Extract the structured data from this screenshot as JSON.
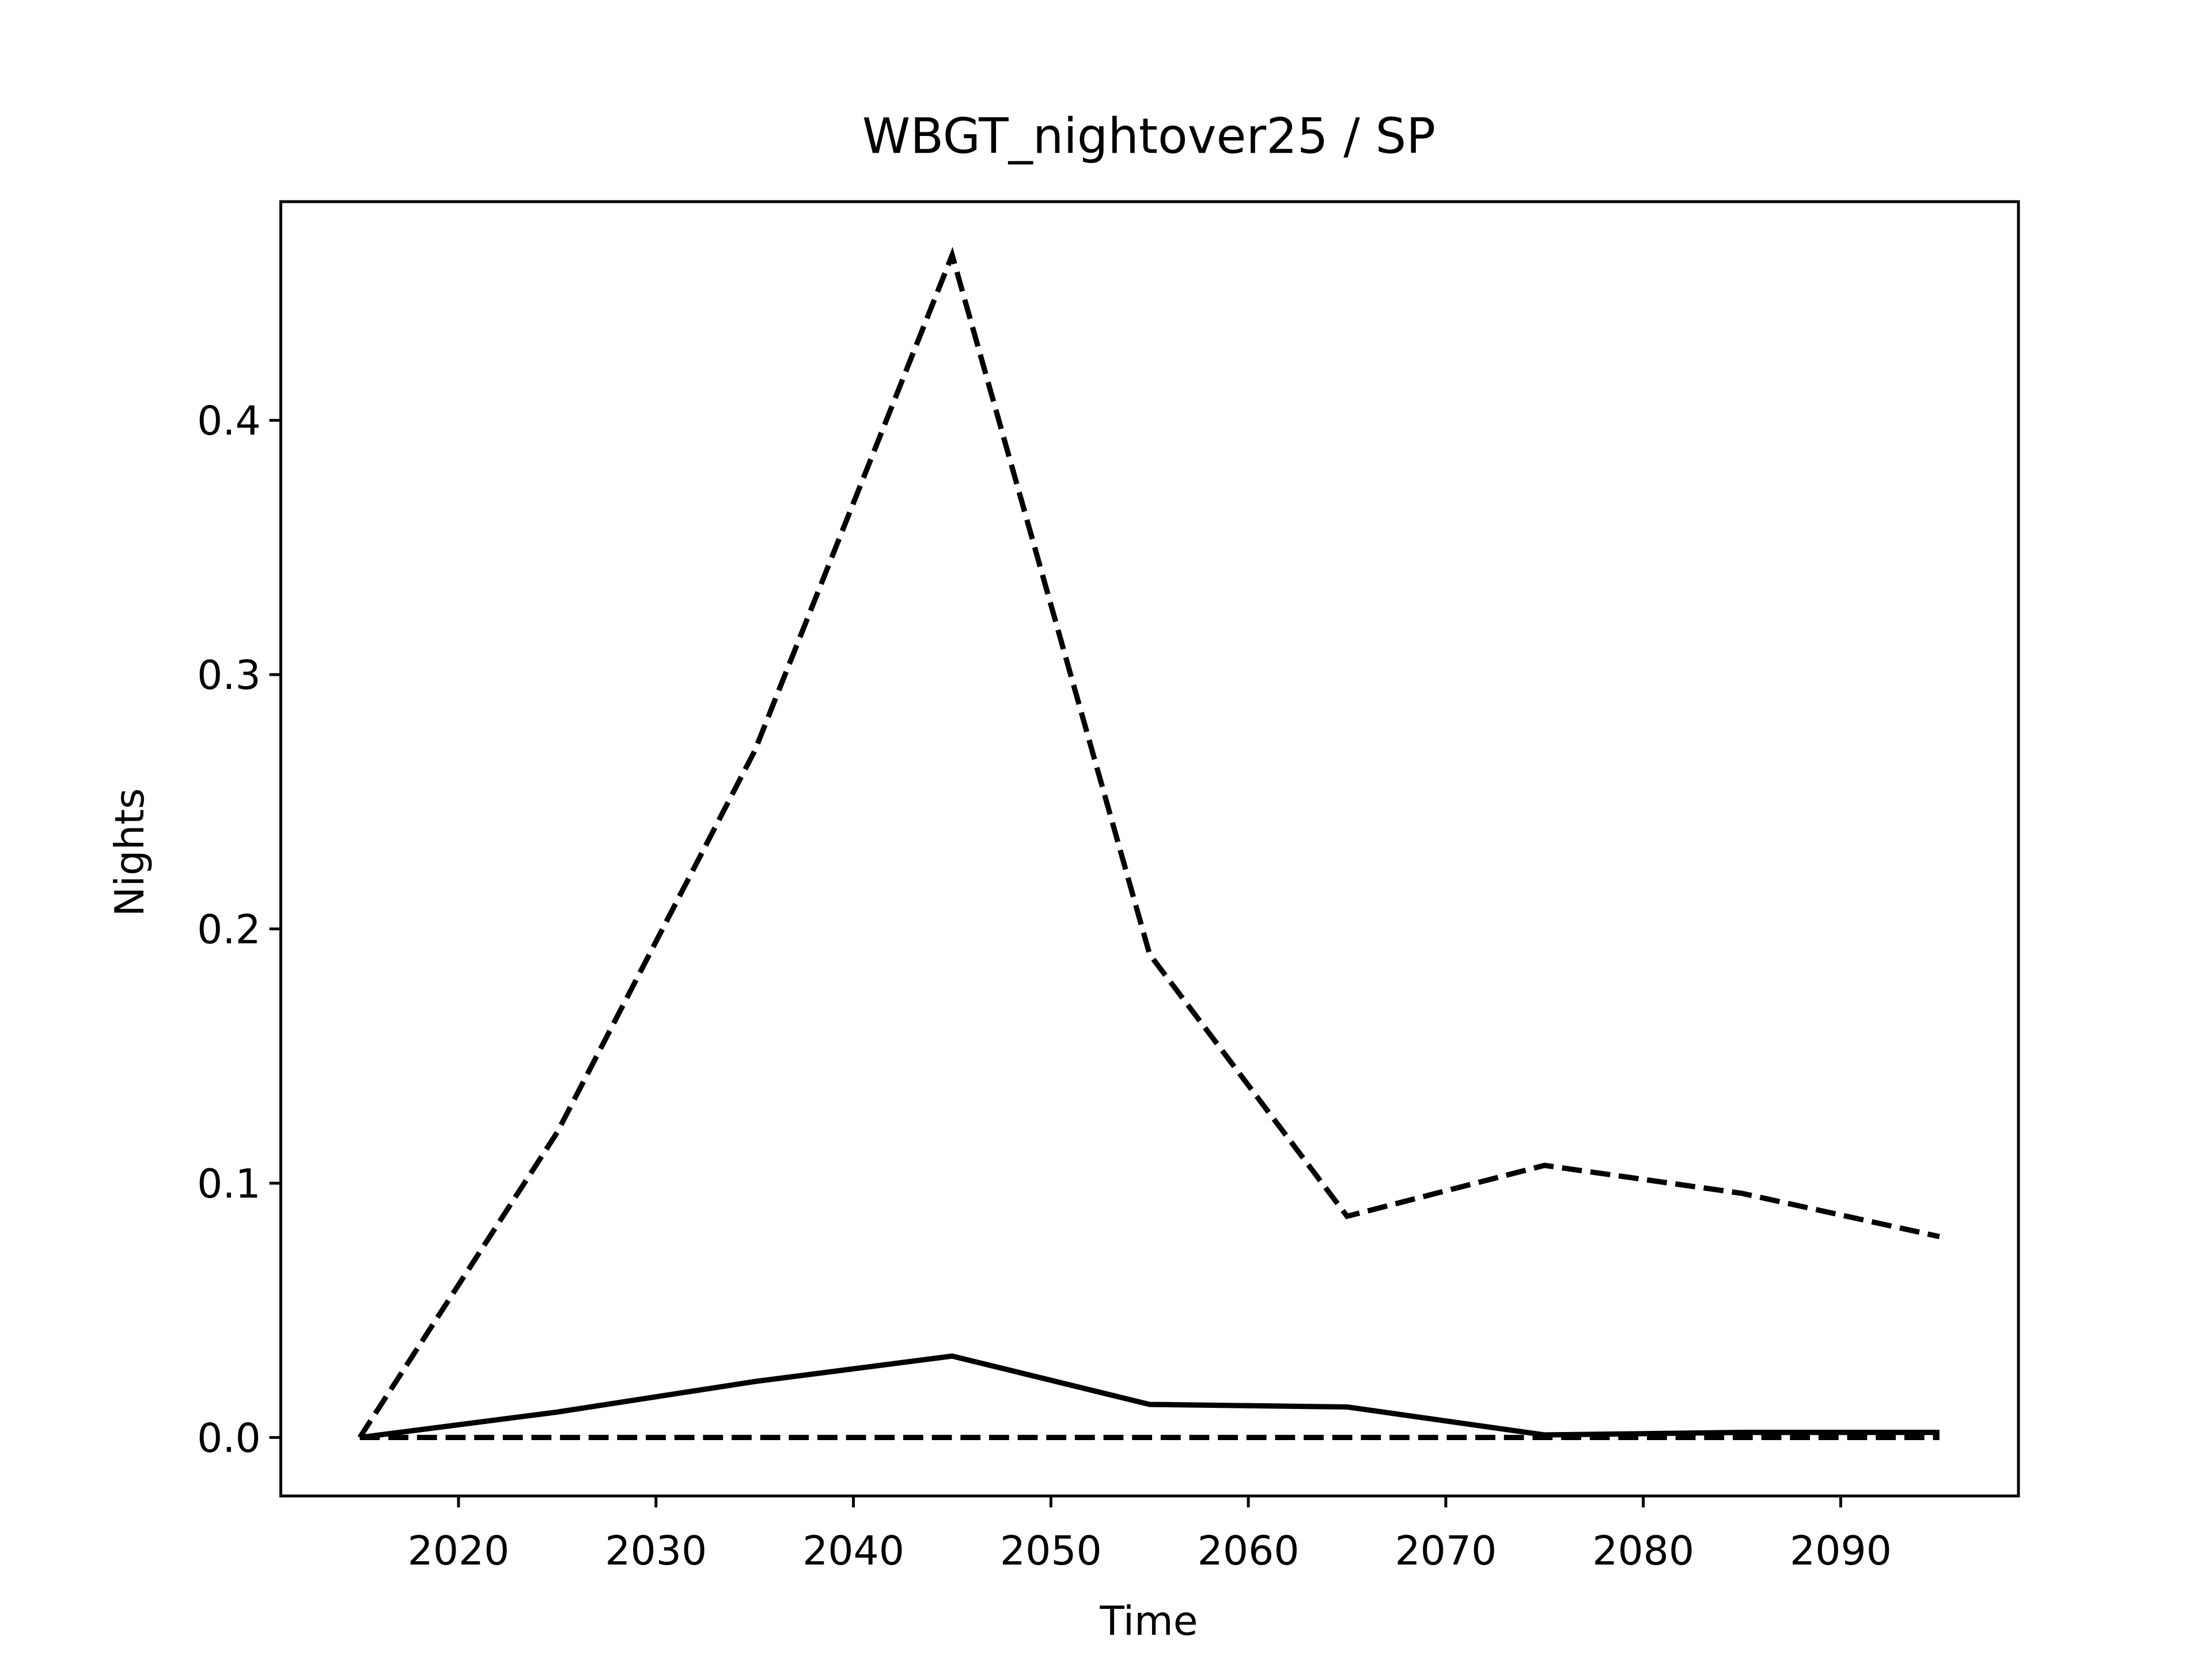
{
  "chart_data": {
    "type": "line",
    "title": "WBGT_nightover25 / SP",
    "x_label": "Time",
    "y_label": "Nights",
    "x": [
      2015,
      2025,
      2035,
      2045,
      2055,
      2065,
      2075,
      2085,
      2095
    ],
    "series": [
      {
        "color": "#000000",
        "linestyle": "dashed",
        "values": [
          0,
          0.12,
          0.27,
          0.465,
          0.19,
          0.087,
          0.107,
          0.096,
          0.079
        ]
      },
      {
        "color": "#000000",
        "linestyle": "solid",
        "values": [
          0,
          0.01,
          0.022,
          0.032,
          0.013,
          0.012,
          0.001,
          0.002,
          0.002
        ]
      },
      {
        "color": "#000000",
        "linestyle": "dashed",
        "values": [
          0,
          0,
          0,
          0,
          0,
          0,
          0,
          0,
          0
        ]
      }
    ],
    "xlim": [
      2011,
      2099
    ],
    "xticks": [
      2020,
      2030,
      2040,
      2050,
      2060,
      2070,
      2080,
      2090
    ],
    "ylim": [
      -0.023,
      0.486
    ],
    "yticks": [
      {
        "value": 0,
        "label": "0.0"
      },
      0.1,
      0.2,
      0.3,
      0.4
    ]
  }
}
